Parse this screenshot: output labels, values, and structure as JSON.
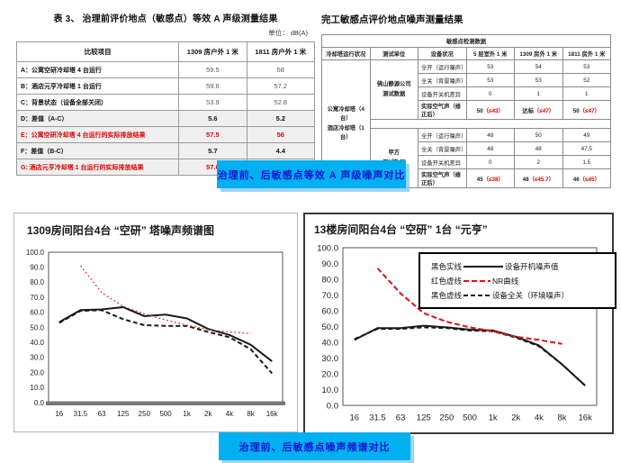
{
  "left_section": {
    "title": "表 3、  治理前评价地点（敏感点）等效 A 声级测量结果",
    "unit": "单位： dB(A)",
    "table": {
      "headers": [
        "比较项目",
        "1309 房户外 1 米",
        "1811 房户外 1 米"
      ],
      "rows": [
        {
          "label": "A：公寓空研冷却塔 4 台运行",
          "v1": "59.5",
          "v2": "58",
          "style": "normal"
        },
        {
          "label": "B：酒店元亨冷却塔 1 台运行",
          "v1": "59.6",
          "v2": "57.2",
          "style": "normal"
        },
        {
          "label": "C：背景状态（设备全部关闭）",
          "v1": "53.9",
          "v2": "52.8",
          "style": "normal"
        },
        {
          "label": "D：差值（A-C）",
          "v1": "5.6",
          "v2": "5.2",
          "style": "bold"
        },
        {
          "label": "E：公寓空研冷却塔 4 台运行的实际排放结果",
          "v1": "57.5",
          "v2": "56",
          "style": "red"
        },
        {
          "label": "F：差值（B-C）",
          "v1": "5.7",
          "v2": "4.4",
          "style": "bold"
        },
        {
          "label": "G: 酒店元亨冷却塔 1 台运行的实际排放结果",
          "v1": "57.6",
          "v2": "55.2",
          "style": "red"
        }
      ]
    }
  },
  "right_section": {
    "title": "完工敏感点评价地点噪声测量结果",
    "table": {
      "merged_header": "敏感点检测数据",
      "headers": [
        "冷却塔运行状况",
        "测试单位",
        "设备状况",
        "5 层室外 1 米",
        "1309 房外 1 米",
        "1811 房外 1 米"
      ],
      "row_group_label": [
        "公寓冷却塔（4 台）",
        "酒店冷却塔（1 台）"
      ],
      "groups": [
        {
          "unit": [
            "佛山静源公司",
            "测试数据"
          ],
          "rows": [
            {
              "cond": "全开（运行噪声）",
              "v": [
                "53",
                "54",
                "53"
              ]
            },
            {
              "cond": "全关（背景噪声）",
              "v": [
                "53",
                "53",
                "52"
              ]
            },
            {
              "cond": "设备开关机差异",
              "v": [
                "0",
                "1",
                "1"
              ]
            },
            {
              "cond": "实际空气声（修正后）",
              "bold": true,
              "v": [
                {
                  "main": "50",
                  "limit": "（≤43）"
                },
                {
                  "main": "达标",
                  "limit": "（≤47）"
                },
                {
                  "main": "50",
                  "limit": "（≤47）"
                }
              ]
            }
          ]
        },
        {
          "unit": [
            "甲方",
            "测试数据"
          ],
          "rows": [
            {
              "cond": "全开（运行噪声）",
              "v": [
                "48",
                "50",
                "49"
              ]
            },
            {
              "cond": "全关（背景噪声）",
              "v": [
                "48",
                "48",
                "47.5"
              ]
            },
            {
              "cond": "设备开关机差异",
              "v": [
                "0",
                "2",
                "1.5"
              ]
            },
            {
              "cond": "实际空气声（修正后）",
              "bold": true,
              "v": [
                {
                  "main": "45",
                  "limit": "（≤38）"
                },
                {
                  "main": "48",
                  "limit": "（≤45.7）"
                },
                {
                  "main": "46",
                  "limit": "（≤45）"
                }
              ]
            }
          ]
        }
      ]
    }
  },
  "banners": {
    "top": "治理前、后敏感点等效 A 声级噪声对比",
    "bottom": "治理前、后敏感点噪声频谱对比",
    "bg": "#00b0f0",
    "text_color": "#1414d2"
  },
  "line_styles": {
    "solid_black": {
      "stroke": "#1a1a1a",
      "w": 2,
      "dash": ""
    },
    "dashed_black": {
      "stroke": "#1a1a1a",
      "w": 2,
      "dash": "5 3"
    },
    "dotted_red": {
      "stroke": "#e03030",
      "w": 1.2,
      "dash": "2 2.5"
    },
    "dashed_red": {
      "stroke": "#e01010",
      "w": 2,
      "dash": "6 3"
    }
  },
  "chart_data": [
    {
      "type": "line",
      "title": "1309房间阳台4台 “空研” 塔噪声频谱图",
      "categories": [
        "16",
        "31.5",
        "63",
        "125",
        "250",
        "500",
        "1k",
        "2k",
        "4k",
        "8k",
        "16k"
      ],
      "xlabel": "",
      "ylabel": "",
      "ylim": [
        0,
        100
      ],
      "ytick": 10,
      "tick_font": 8,
      "ml": 36,
      "grid": false,
      "thick_baseline": true,
      "series": [
        {
          "name": "设备开机噪声值",
          "style": "solid_black",
          "values": [
            53.5,
            61.5,
            62,
            63.5,
            57.5,
            58.5,
            56,
            49,
            45,
            38.5,
            27.5
          ]
        },
        {
          "name": "设备全关（环境噪声）",
          "style": "dashed_black",
          "values": [
            53,
            61,
            61.5,
            55.5,
            51.5,
            51,
            51,
            47,
            43.5,
            35.5,
            19.5
          ]
        },
        {
          "name": "NR曲线",
          "style": "dotted_red",
          "values": [
            null,
            91,
            73,
            64,
            59,
            55,
            51.5,
            48.5,
            47,
            46,
            null
          ]
        }
      ]
    },
    {
      "type": "line",
      "title": "13楼房间阳台4台 “空研” 1台 “元亨”",
      "categories": [
        "16",
        "31.5",
        "63",
        "125",
        "250",
        "500",
        "1k",
        "2k",
        "4k",
        "8k",
        "16k"
      ],
      "xlabel": "",
      "ylabel": "",
      "ylim": [
        0,
        100
      ],
      "ytick": 10,
      "tick_font": 9.5,
      "ml": 40,
      "grid": false,
      "thick_baseline": false,
      "legend_position": "top-right",
      "legend": {
        "entries": [
          {
            "pre": "黑色实线",
            "swatch": "solid_black",
            "post": "设备开机噪声值"
          },
          {
            "pre": "红色虚线",
            "swatch": "dashed_red",
            "post": "NR曲线"
          },
          {
            "pre": "黑色虚线",
            "swatch": "dashed_black",
            "post": "设备全关（环境噪声）"
          }
        ]
      },
      "series": [
        {
          "name": "设备开机噪声值",
          "style": "solid_black",
          "values": [
            41.5,
            49,
            49,
            50.5,
            49.5,
            48,
            47.5,
            43.5,
            38,
            26,
            12.5
          ]
        },
        {
          "name": "设备全关（环境噪声）",
          "style": "dashed_black",
          "values": [
            42,
            48.5,
            48.5,
            49.5,
            49,
            47.5,
            47,
            43,
            37.5,
            26,
            12.5
          ]
        },
        {
          "name": "NR曲线",
          "style": "dashed_red",
          "values": [
            null,
            87,
            71,
            58.5,
            53,
            49.5,
            47,
            43.5,
            41.5,
            39,
            null
          ]
        }
      ]
    }
  ]
}
